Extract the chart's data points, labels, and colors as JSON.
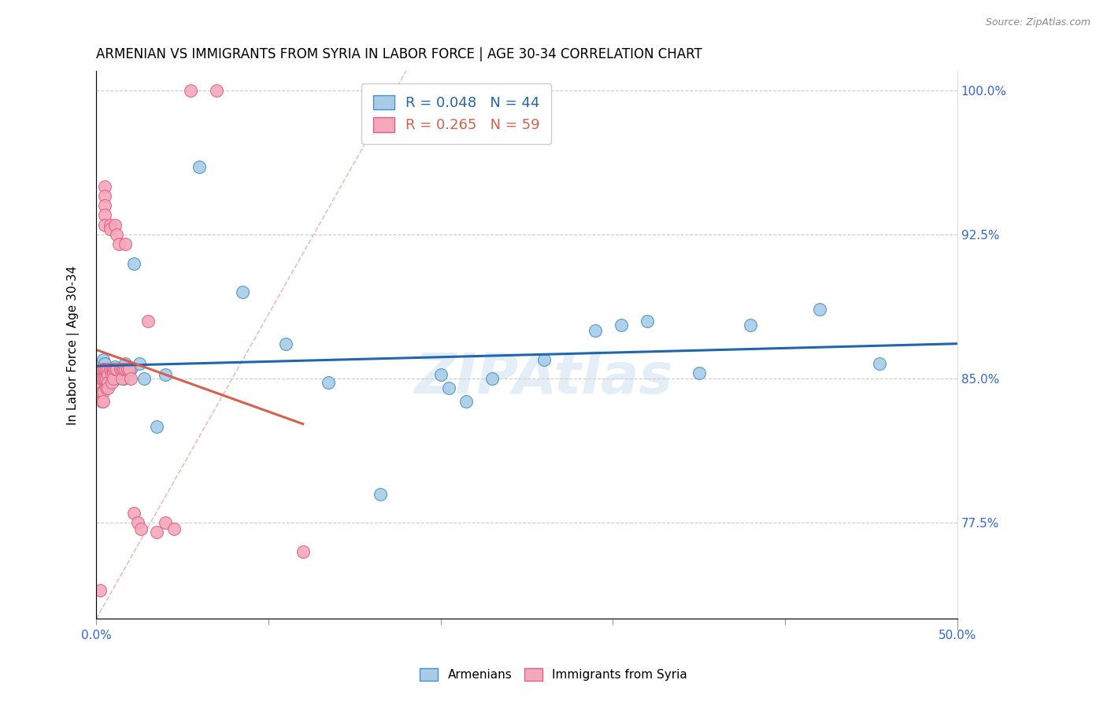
{
  "title": "ARMENIAN VS IMMIGRANTS FROM SYRIA IN LABOR FORCE | AGE 30-34 CORRELATION CHART",
  "source": "Source: ZipAtlas.com",
  "ylabel": "In Labor Force | Age 30-34",
  "xlim": [
    0.0,
    0.5
  ],
  "ylim": [
    0.725,
    1.01
  ],
  "yticks": [
    0.775,
    0.85,
    0.925,
    1.0
  ],
  "yticklabels": [
    "77.5%",
    "85.0%",
    "92.5%",
    "100.0%"
  ],
  "legend_arm": "R = 0.048   N = 44",
  "legend_syr": "R = 0.265   N = 59",
  "watermark": "ZIPAtlas",
  "arm_fill": "#a8cce8",
  "arm_edge": "#4393c3",
  "syr_fill": "#f4a8bc",
  "syr_edge": "#e06080",
  "trend_arm_color": "#2166ac",
  "trend_syr_color": "#d6604d",
  "diag_color": "#ccaaaa",
  "title_fontsize": 12,
  "tick_fontsize": 11,
  "label_fontsize": 11,
  "armenians_x": [
    0.002,
    0.003,
    0.003,
    0.004,
    0.005,
    0.005,
    0.006,
    0.006,
    0.007,
    0.008,
    0.009,
    0.01,
    0.01,
    0.011,
    0.012,
    0.013,
    0.014,
    0.015,
    0.016,
    0.017,
    0.018,
    0.02,
    0.022,
    0.025,
    0.028,
    0.035,
    0.04,
    0.06,
    0.085,
    0.11,
    0.135,
    0.165,
    0.2,
    0.205,
    0.215,
    0.23,
    0.26,
    0.29,
    0.305,
    0.32,
    0.35,
    0.38,
    0.42,
    0.455
  ],
  "armenians_y": [
    0.858,
    0.855,
    0.853,
    0.86,
    0.858,
    0.855,
    0.853,
    0.85,
    0.855,
    0.852,
    0.85,
    0.855,
    0.85,
    0.856,
    0.85,
    0.855,
    0.853,
    0.852,
    0.85,
    0.858,
    0.852,
    0.855,
    0.91,
    0.858,
    0.85,
    0.825,
    0.852,
    0.96,
    0.895,
    0.868,
    0.848,
    0.79,
    0.852,
    0.845,
    0.838,
    0.85,
    0.86,
    0.875,
    0.878,
    0.88,
    0.853,
    0.878,
    0.886,
    0.858
  ],
  "syria_x": [
    0.001,
    0.001,
    0.002,
    0.002,
    0.002,
    0.003,
    0.003,
    0.003,
    0.004,
    0.004,
    0.004,
    0.004,
    0.005,
    0.005,
    0.005,
    0.005,
    0.005,
    0.005,
    0.005,
    0.006,
    0.006,
    0.006,
    0.007,
    0.007,
    0.007,
    0.007,
    0.008,
    0.008,
    0.008,
    0.009,
    0.009,
    0.009,
    0.01,
    0.01,
    0.01,
    0.011,
    0.011,
    0.012,
    0.012,
    0.013,
    0.014,
    0.015,
    0.015,
    0.016,
    0.017,
    0.017,
    0.018,
    0.019,
    0.02,
    0.022,
    0.024,
    0.026,
    0.03,
    0.035,
    0.04,
    0.045,
    0.055,
    0.07,
    0.12
  ],
  "syria_y": [
    0.855,
    0.848,
    0.85,
    0.845,
    0.74,
    0.85,
    0.843,
    0.838,
    0.855,
    0.85,
    0.843,
    0.838,
    0.95,
    0.945,
    0.94,
    0.935,
    0.93,
    0.855,
    0.85,
    0.855,
    0.85,
    0.845,
    0.855,
    0.852,
    0.848,
    0.845,
    0.93,
    0.928,
    0.855,
    0.855,
    0.852,
    0.848,
    0.855,
    0.853,
    0.85,
    0.93,
    0.855,
    0.925,
    0.855,
    0.92,
    0.855,
    0.855,
    0.85,
    0.855,
    0.92,
    0.855,
    0.855,
    0.855,
    0.85,
    0.78,
    0.775,
    0.772,
    0.88,
    0.77,
    0.775,
    0.772,
    1.0,
    1.0,
    0.76
  ]
}
